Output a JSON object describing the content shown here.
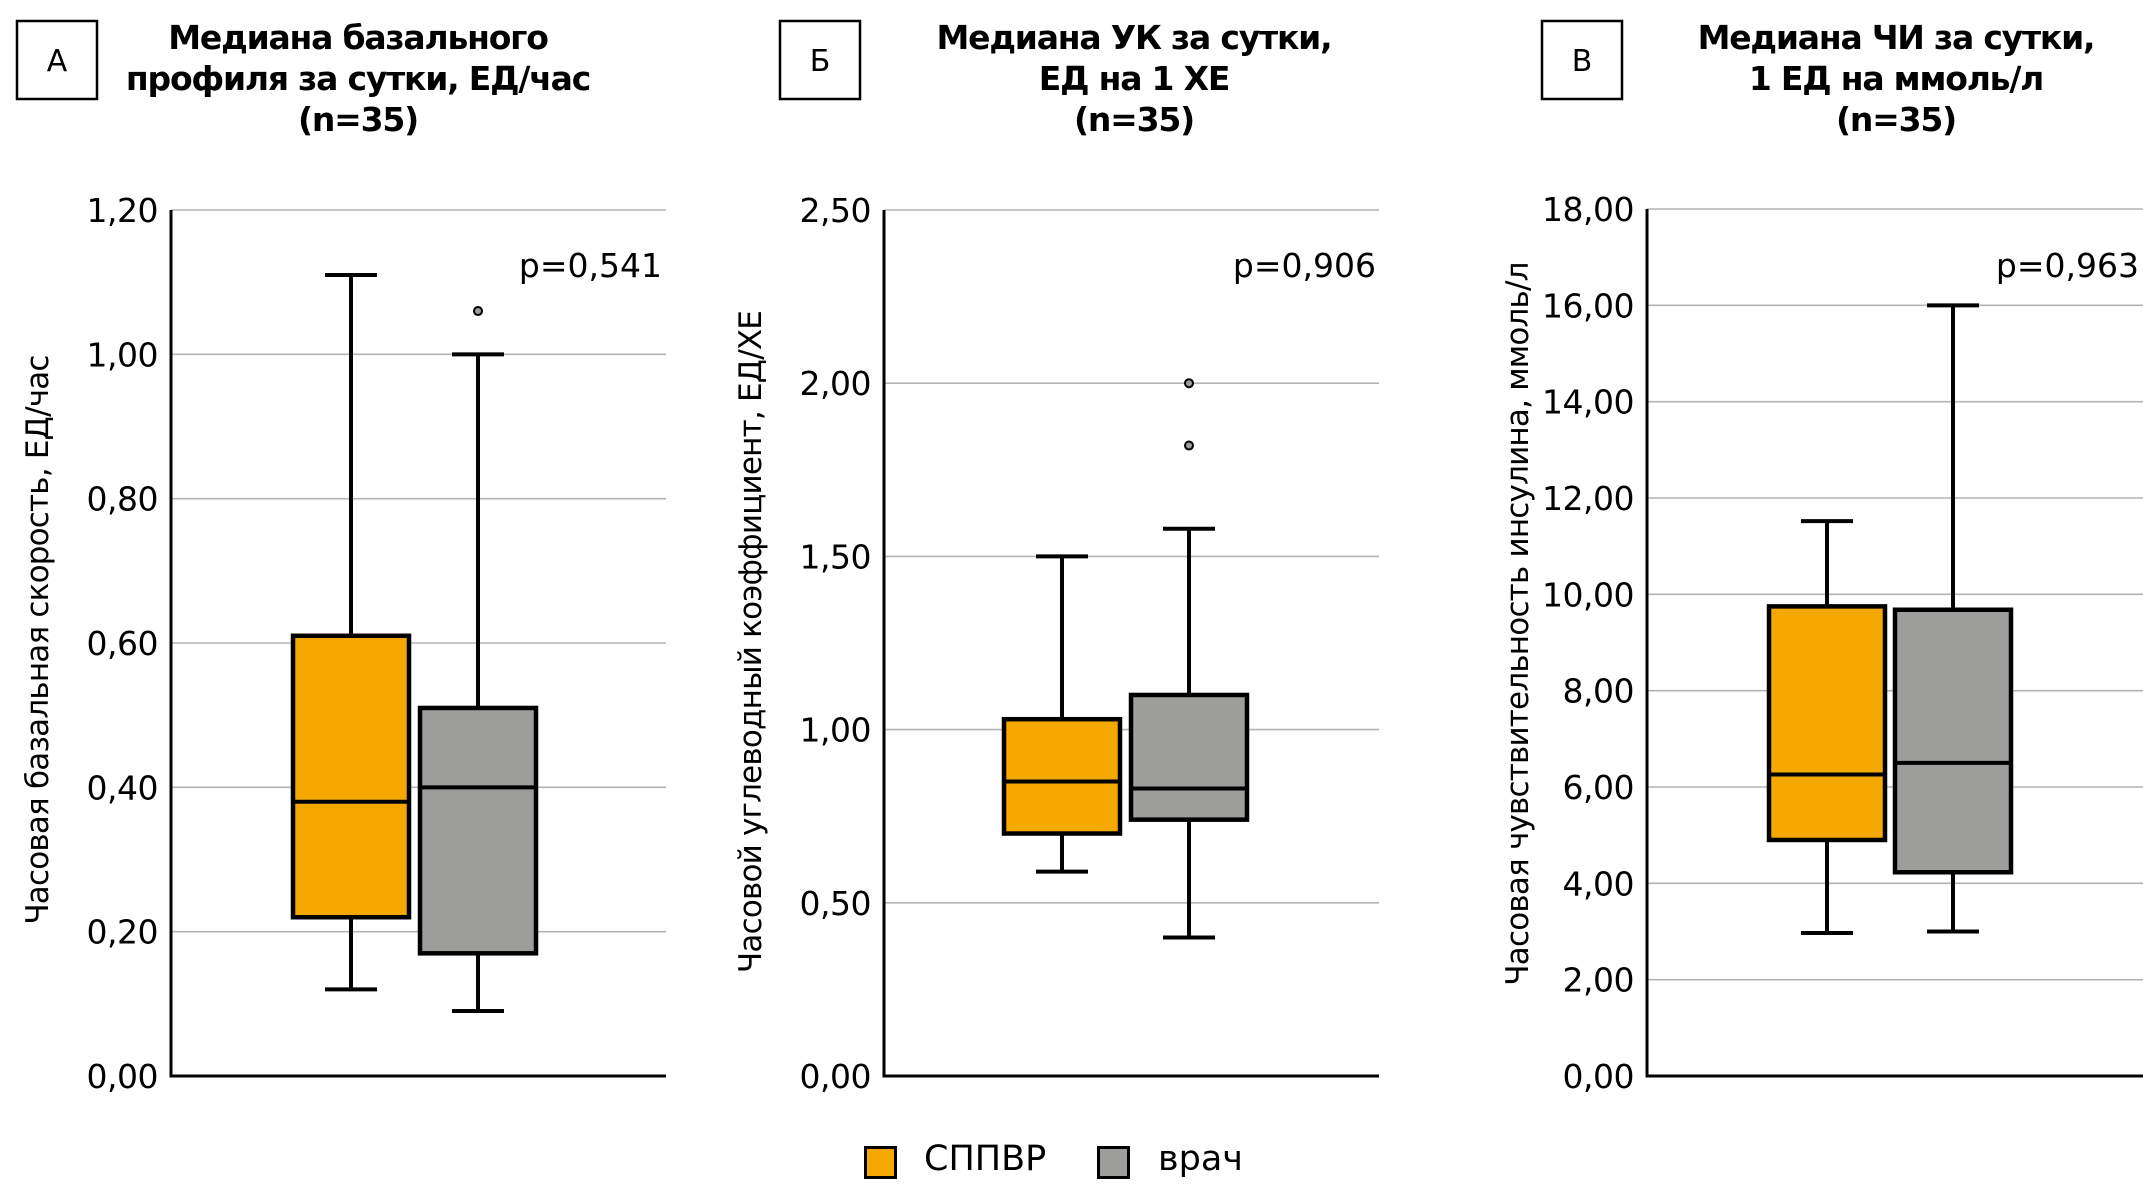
{
  "legend": [
    {
      "label": "СППВР",
      "color": "#F5A800"
    },
    {
      "label": "врач",
      "color": "#9D9D9B"
    }
  ],
  "colors": {
    "border": "#000000",
    "grid": "#B3B3B3"
  },
  "chart_data": [
    {
      "type": "box",
      "panel_letter": "А",
      "title": [
        "Медиана базального",
        "профиля за сутки, ЕД/час",
        "(n=35)"
      ],
      "ylabel": "Часовая базальная скорость, ЕД/час",
      "xlabel": "",
      "ylim": [
        0,
        1.2
      ],
      "yticks": [
        0,
        0.2,
        0.4,
        0.6,
        0.8,
        1.0,
        1.2
      ],
      "ytick_labels": [
        "0,00",
        "0,20",
        "0,40",
        "0,60",
        "0,80",
        "1,00",
        "1,20"
      ],
      "grid": true,
      "annotation": "p=0,541",
      "series": [
        {
          "name": "СППВР",
          "whisker_low": 0.12,
          "q1": 0.22,
          "median": 0.38,
          "q3": 0.61,
          "whisker_high": 1.11,
          "outliers": []
        },
        {
          "name": "врач",
          "whisker_low": 0.09,
          "q1": 0.17,
          "median": 0.4,
          "q3": 0.51,
          "whisker_high": 1.0,
          "outliers": [
            1.06
          ]
        }
      ]
    },
    {
      "type": "box",
      "panel_letter": "Б",
      "title": [
        "Медиана УК за сутки,",
        "ЕД на 1 ХЕ",
        "(n=35)"
      ],
      "ylabel": "Часовой углеводный коэффициент, ЕД/ХЕ",
      "xlabel": "",
      "ylim": [
        0,
        2.5
      ],
      "yticks": [
        0,
        0.5,
        1.0,
        1.5,
        2.0,
        2.5
      ],
      "ytick_labels": [
        "0,00",
        "0,50",
        "1,00",
        "1,50",
        "2,00",
        "2,50"
      ],
      "grid": true,
      "annotation": "p=0,906",
      "series": [
        {
          "name": "СППВР",
          "whisker_low": 0.59,
          "q1": 0.7,
          "median": 0.85,
          "q3": 1.03,
          "whisker_high": 1.5,
          "outliers": []
        },
        {
          "name": "врач",
          "whisker_low": 0.4,
          "q1": 0.74,
          "median": 0.83,
          "q3": 1.1,
          "whisker_high": 1.58,
          "outliers": [
            1.82,
            2.0
          ]
        }
      ]
    },
    {
      "type": "box",
      "panel_letter": "В",
      "title": [
        "Медиана ЧИ за сутки,",
        "1 ЕД на ммоль/л",
        "(n=35)"
      ],
      "ylabel": "Часовая чувствительность инсулина, ммоль/л",
      "xlabel": "",
      "ylim": [
        0,
        18
      ],
      "yticks": [
        0,
        2,
        4,
        6,
        8,
        10,
        12,
        14,
        16,
        18
      ],
      "ytick_labels": [
        "0,00",
        "2,00",
        "4,00",
        "6,00",
        "8,00",
        "10,00",
        "12,00",
        "14,00",
        "16,00",
        "18,00"
      ],
      "grid": true,
      "annotation": "p=0,963",
      "series": [
        {
          "name": "СППВР",
          "whisker_low": 2.97,
          "q1": 4.9,
          "median": 6.26,
          "q3": 9.75,
          "whisker_high": 11.52,
          "outliers": []
        },
        {
          "name": "врач",
          "whisker_low": 3.0,
          "q1": 4.23,
          "median": 6.5,
          "q3": 9.68,
          "whisker_high": 16.0,
          "outliers": []
        }
      ]
    }
  ]
}
